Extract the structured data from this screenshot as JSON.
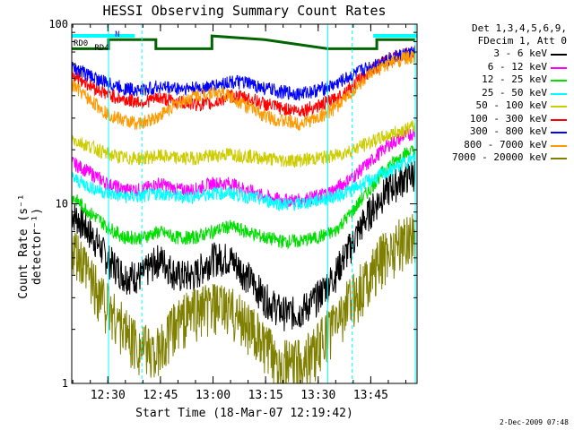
{
  "chart_data": {
    "type": "line",
    "title": "HESSI Observing Summary Count Rates",
    "xlabel": "Start Time (18-Mar-07 12:19:42)",
    "ylabel": "Count Rate (s⁻¹ detector⁻¹)",
    "yscale": "log",
    "ylim": [
      1,
      100
    ],
    "yticks": [
      "1",
      "10",
      "100"
    ],
    "xlim_minutes_after_start": [
      0,
      98.5
    ],
    "xticks": [
      "12:30",
      "12:45",
      "13:00",
      "13:15",
      "13:30",
      "13:45"
    ],
    "xtick_minutes": [
      10.3,
      25.3,
      40.3,
      55.3,
      70.3,
      85.3
    ],
    "grid": false,
    "legend": {
      "position": "right",
      "header": [
        "Det 1,3,4,5,6,9,",
        "FDecim 1, Att 0"
      ],
      "entries": [
        {
          "label": "3 - 6 keV",
          "color": "#000000"
        },
        {
          "label": "6 - 12 keV",
          "color": "#ff00ff"
        },
        {
          "label": "12 - 25 keV",
          "color": "#00dd00"
        },
        {
          "label": "25 - 50 keV",
          "color": "#00ffff"
        },
        {
          "label": "50 - 100 keV",
          "color": "#cccc00"
        },
        {
          "label": "100 - 300 keV",
          "color": "#ff0000"
        },
        {
          "label": "300 - 800 keV",
          "color": "#0000ff"
        },
        {
          "label": "800 - 7000 keV",
          "color": "#ff9900"
        },
        {
          "label": "7000 - 20000 keV",
          "color": "#808000"
        }
      ]
    },
    "annotations": [
      "RD0",
      "N",
      "RD4"
    ],
    "series": [
      {
        "name": "3 - 6 keV",
        "color": "#000000",
        "x_minutes": [
          0,
          5,
          10,
          15,
          20,
          25,
          30,
          35,
          40,
          45,
          50,
          55,
          60,
          65,
          70,
          75,
          80,
          85,
          90,
          95,
          98
        ],
        "y": [
          9,
          7,
          5,
          4,
          4,
          5,
          4,
          4,
          5,
          5,
          4,
          3,
          2.5,
          2.5,
          3,
          4,
          6,
          9,
          12,
          14,
          15
        ]
      },
      {
        "name": "6 - 12 keV",
        "color": "#ff00ff",
        "x_minutes": [
          0,
          5,
          10,
          15,
          20,
          25,
          30,
          35,
          40,
          45,
          50,
          55,
          60,
          65,
          70,
          75,
          80,
          85,
          90,
          95,
          98
        ],
        "y": [
          17,
          15,
          13,
          12,
          12,
          13,
          12,
          12,
          13,
          13,
          12,
          11,
          10.5,
          10.5,
          11,
          12,
          14,
          17,
          21,
          24,
          25
        ]
      },
      {
        "name": "12 - 25 keV",
        "color": "#00dd00",
        "x_minutes": [
          0,
          5,
          10,
          15,
          20,
          25,
          30,
          35,
          40,
          45,
          50,
          55,
          60,
          65,
          70,
          75,
          80,
          85,
          90,
          95,
          98
        ],
        "y": [
          11,
          9,
          7.5,
          6.5,
          6.5,
          7,
          6.5,
          6.5,
          7,
          7.5,
          7,
          6.5,
          6.2,
          6.2,
          6.5,
          7,
          9,
          12,
          16,
          19,
          20
        ]
      },
      {
        "name": "25 - 50 keV",
        "color": "#00ffff",
        "x_minutes": [
          0,
          5,
          10,
          15,
          20,
          25,
          30,
          35,
          40,
          45,
          50,
          55,
          60,
          65,
          70,
          75,
          80,
          85,
          90,
          95,
          98
        ],
        "y": [
          14,
          12.5,
          11.5,
          11,
          11,
          11.5,
          11,
          11,
          11.5,
          11.5,
          11,
          10.5,
          10,
          10,
          10.5,
          11,
          12,
          13.5,
          15,
          17,
          18
        ]
      },
      {
        "name": "50 - 100 keV",
        "color": "#cccc00",
        "x_minutes": [
          0,
          5,
          10,
          15,
          20,
          25,
          30,
          35,
          40,
          45,
          50,
          55,
          60,
          65,
          70,
          75,
          80,
          85,
          90,
          95,
          98
        ],
        "y": [
          23,
          21,
          19,
          18,
          18,
          18.5,
          18,
          18,
          18.5,
          19,
          18.5,
          18,
          17.5,
          17.5,
          18,
          18.5,
          20,
          22,
          24,
          26,
          27
        ]
      },
      {
        "name": "100 - 300 keV",
        "color": "#ff0000",
        "x_minutes": [
          0,
          5,
          10,
          15,
          20,
          25,
          30,
          35,
          40,
          45,
          50,
          55,
          60,
          65,
          70,
          75,
          80,
          85,
          90,
          95,
          98
        ],
        "y": [
          53,
          46,
          41,
          38,
          37,
          39,
          37,
          36,
          36,
          40,
          39,
          36,
          34,
          33,
          35,
          38,
          45,
          55,
          63,
          68,
          70
        ]
      },
      {
        "name": "300 - 800 keV",
        "color": "#0000ff",
        "x_minutes": [
          0,
          5,
          10,
          15,
          20,
          25,
          30,
          35,
          40,
          45,
          50,
          55,
          60,
          65,
          70,
          75,
          80,
          85,
          90,
          95,
          98
        ],
        "y": [
          58,
          52,
          47,
          44,
          43,
          45,
          44,
          44,
          45,
          48,
          47,
          44,
          42,
          41,
          43,
          46,
          52,
          58,
          64,
          68,
          70
        ]
      },
      {
        "name": "800 - 7000 keV",
        "color": "#ff9900",
        "x_minutes": [
          0,
          5,
          10,
          15,
          20,
          25,
          30,
          35,
          40,
          45,
          50,
          55,
          60,
          65,
          70,
          75,
          80,
          85,
          90,
          95,
          98
        ],
        "y": [
          46,
          38,
          32,
          29,
          28,
          31,
          36,
          40,
          42,
          40,
          35,
          31,
          29,
          28,
          30,
          34,
          42,
          52,
          60,
          65,
          66
        ]
      },
      {
        "name": "7000 - 20000 keV",
        "color": "#808000",
        "x_minutes": [
          0,
          5,
          10,
          15,
          20,
          25,
          30,
          35,
          40,
          45,
          50,
          55,
          60,
          65,
          70,
          75,
          80,
          85,
          90,
          95,
          98
        ],
        "y": [
          5.5,
          4,
          2.8,
          2,
          1.6,
          1.5,
          2.2,
          2.6,
          2.7,
          2.6,
          2.2,
          1.6,
          1.3,
          1.3,
          1.6,
          2.2,
          3,
          4,
          5.5,
          6.5,
          7
        ]
      },
      {
        "name": "RD0",
        "color": "#006400",
        "x_minutes": [
          0,
          10.5,
          10.5,
          24,
          24,
          40,
          40,
          55,
          73,
          73,
          87,
          87,
          98
        ],
        "y": [
          73,
          73,
          82,
          82,
          73,
          73,
          86,
          82,
          73,
          73,
          73,
          82,
          82
        ]
      }
    ]
  },
  "date_stamp": "2-Dec-2009 07:48"
}
